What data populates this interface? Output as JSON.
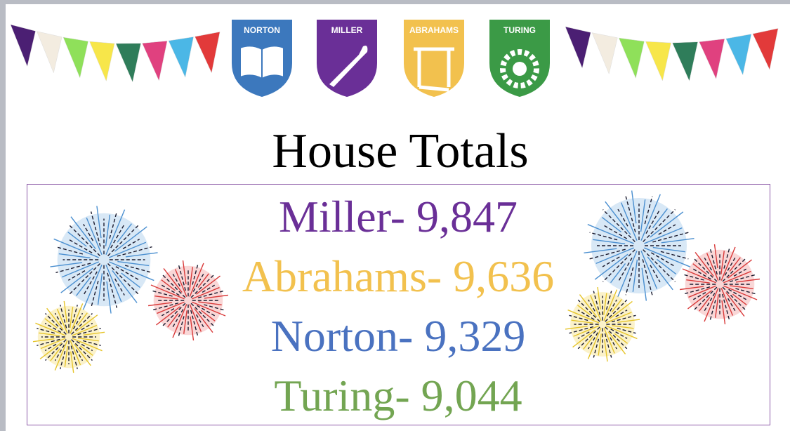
{
  "shields": [
    {
      "label": "NORTON"
    },
    {
      "label": "MILLER"
    },
    {
      "label": "ABRAHAMS"
    },
    {
      "label": "TURING"
    }
  ],
  "title": "House Totals",
  "totals": [
    {
      "text": "Miller- 9,847",
      "color": "#6a2f97"
    },
    {
      "text": "Abrahams- 9,636",
      "color": "#f2c14e"
    },
    {
      "text": "Norton- 9,329",
      "color": "#4a72c0"
    },
    {
      "text": "Turing- 9,044",
      "color": "#73a552"
    }
  ]
}
